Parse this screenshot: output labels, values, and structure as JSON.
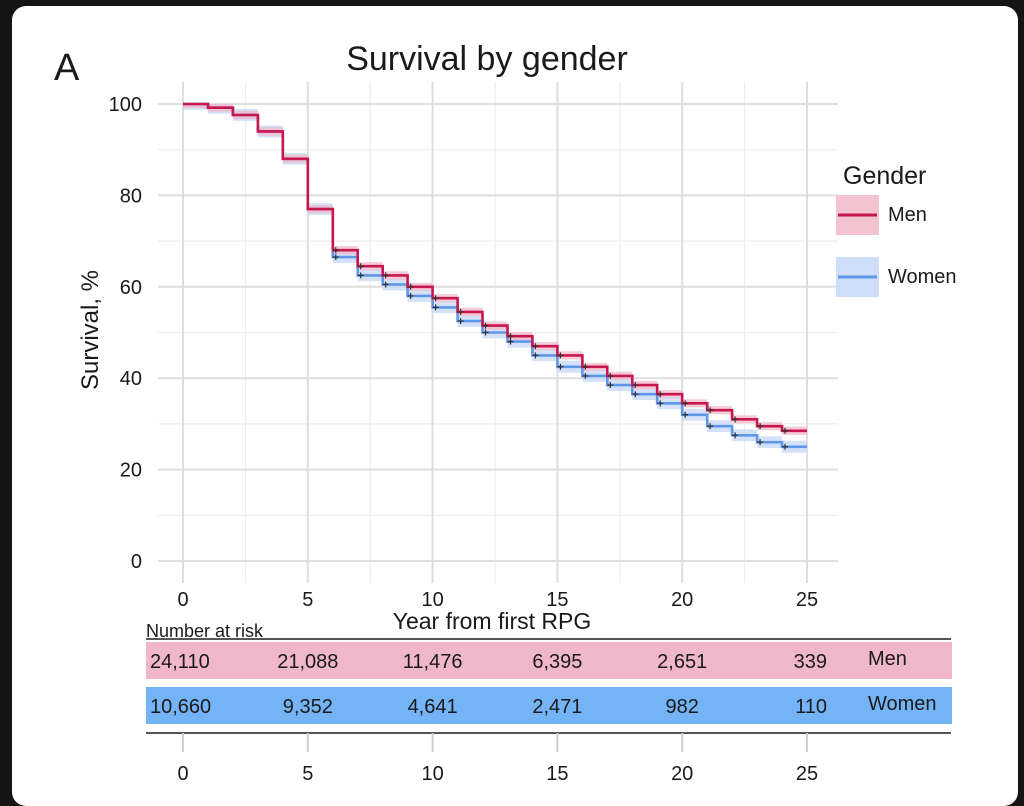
{
  "panel_label": "A",
  "chart_data": {
    "type": "line",
    "subtype": "kaplan-meier-step",
    "title": "Survival by gender",
    "xlabel": "Year from first RPG",
    "ylabel": "Survival, %",
    "xlim": [
      0,
      25
    ],
    "ylim": [
      0,
      100
    ],
    "x_ticks": [
      0,
      5,
      10,
      15,
      20,
      25
    ],
    "y_ticks": [
      0,
      20,
      40,
      60,
      80,
      100
    ],
    "grid": true,
    "legend": {
      "title": "Gender",
      "placement": "right"
    },
    "series": [
      {
        "name": "Men",
        "color": "#c8174f",
        "band_color": "#f2b8c9",
        "x": [
          0,
          1,
          2,
          3,
          4,
          5,
          6,
          7,
          8,
          9,
          10,
          11,
          12,
          13,
          14,
          15,
          16,
          17,
          18,
          19,
          20,
          21,
          22,
          23,
          24,
          25
        ],
        "y": [
          100,
          99.2,
          97.6,
          94,
          88,
          77,
          68,
          64.5,
          62.5,
          60,
          57.5,
          54.5,
          51.5,
          49.2,
          47,
          45,
          42.5,
          40.5,
          38.5,
          36.5,
          34.5,
          33,
          31,
          29.5,
          28.5,
          28.5
        ],
        "ci_halfwidth": 0.9
      },
      {
        "name": "Women",
        "color": "#5f97e8",
        "band_color": "#c6d8f7",
        "x": [
          0,
          1,
          2,
          3,
          4,
          5,
          6,
          7,
          8,
          9,
          10,
          11,
          12,
          13,
          14,
          15,
          16,
          17,
          18,
          19,
          20,
          21,
          22,
          23,
          24,
          25
        ],
        "y": [
          100,
          99.2,
          97.6,
          94,
          88,
          77,
          66.5,
          62.5,
          60.5,
          58,
          55.5,
          52.5,
          50,
          48,
          45,
          42.5,
          40.5,
          38.5,
          36.5,
          34.5,
          32,
          29.5,
          27.5,
          26,
          25,
          25
        ],
        "ci_halfwidth": 1.3
      }
    ],
    "risk_table": {
      "title": "Number at risk",
      "times": [
        0,
        5,
        10,
        15,
        20,
        25
      ],
      "rows": [
        {
          "group": "Men",
          "color": "#f0b6c9",
          "values": [
            "24,110",
            "21,088",
            "11,476",
            "6,395",
            "2,651",
            "339"
          ]
        },
        {
          "group": "Women",
          "color": "#74b3f5",
          "values": [
            "10,660",
            "9,352",
            "4,641",
            "2,471",
            "982",
            "110"
          ]
        }
      ],
      "bottom_ticks": [
        "0",
        "5",
        "10",
        "15",
        "20",
        "25"
      ]
    }
  }
}
